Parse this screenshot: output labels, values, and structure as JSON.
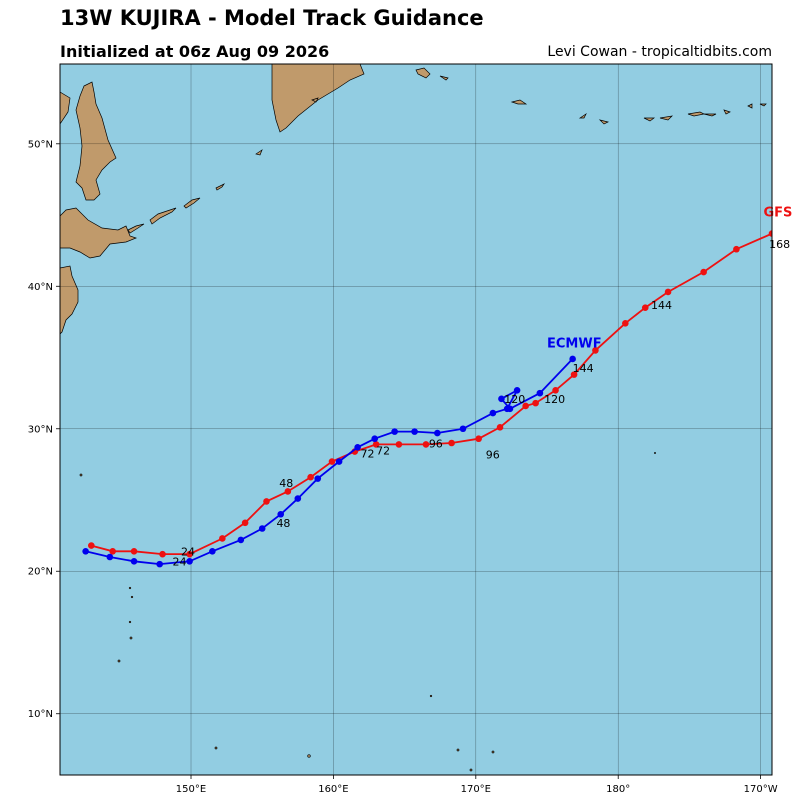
{
  "header": {
    "title": "13W KUJIRA - Model Track Guidance",
    "subtitle": "Initialized at 06z Aug 09 2026",
    "credit": "Levi Cowan - tropicaltidbits.com"
  },
  "axes": {
    "lat_ticks": [
      {
        "value": 10,
        "label": "10°N"
      },
      {
        "value": 20,
        "label": "20°N"
      },
      {
        "value": 30,
        "label": "30°N"
      },
      {
        "value": 40,
        "label": "40°N"
      },
      {
        "value": 50,
        "label": "50°N"
      }
    ],
    "lon_ticks": [
      {
        "value": 150,
        "label": "150°E"
      },
      {
        "value": 160,
        "label": "160°E"
      },
      {
        "value": 170,
        "label": "170°E"
      },
      {
        "value": 180,
        "label": "180°"
      },
      {
        "value": 190,
        "label": "170°W"
      }
    ],
    "lon_range": [
      140.8,
      190.8
    ],
    "lat_range": [
      5.7,
      55.6
    ],
    "grid": true
  },
  "colors": {
    "ocean": "#92cde2",
    "land": "#c09a6b",
    "gfs": "#ee1111",
    "ecmwf": "#0000ee"
  },
  "chart_data": {
    "type": "map-track",
    "series": [
      {
        "name": "GFS",
        "color": "#ee1111",
        "points": [
          [
            143.0,
            21.8
          ],
          [
            144.5,
            21.4
          ],
          [
            146.0,
            21.4
          ],
          [
            148.0,
            21.2
          ],
          [
            149.9,
            21.2
          ],
          [
            152.2,
            22.3
          ],
          [
            153.8,
            23.4
          ],
          [
            155.3,
            24.9
          ],
          [
            156.8,
            25.6
          ],
          [
            158.4,
            26.6
          ],
          [
            159.9,
            27.7
          ],
          [
            161.5,
            28.4
          ],
          [
            163.0,
            28.9
          ],
          [
            164.6,
            28.9
          ],
          [
            166.5,
            28.9
          ],
          [
            168.3,
            29.0
          ],
          [
            170.2,
            29.3
          ],
          [
            171.7,
            30.1
          ],
          [
            173.5,
            31.6
          ],
          [
            174.2,
            31.8
          ],
          [
            175.6,
            32.7
          ],
          [
            176.9,
            33.8
          ],
          [
            178.4,
            35.5
          ],
          [
            180.5,
            37.4
          ],
          [
            181.9,
            38.5
          ],
          [
            183.5,
            39.6
          ],
          [
            186.0,
            41.0
          ],
          [
            188.3,
            42.6
          ],
          [
            190.8,
            43.7
          ]
        ],
        "hour_labels": [
          {
            "text": "24",
            "lon": 148.7,
            "lat": 20.4
          },
          {
            "text": "48",
            "lon": 156.2,
            "lat": 25.9
          },
          {
            "text": "72",
            "lon": 161.9,
            "lat": 28.0
          },
          {
            "text": "96",
            "lon": 166.7,
            "lat": 28.7
          },
          {
            "text": "120",
            "lon": 174.8,
            "lat": 31.8
          },
          {
            "text": "144",
            "lon": 182.3,
            "lat": 38.4
          },
          {
            "text": "168",
            "lon": 190.6,
            "lat": 42.7
          }
        ]
      },
      {
        "name": "ECMWF",
        "color": "#0000ee",
        "points": [
          [
            142.6,
            21.4
          ],
          [
            144.3,
            21.0
          ],
          [
            146.0,
            20.7
          ],
          [
            147.8,
            20.5
          ],
          [
            149.9,
            20.7
          ],
          [
            151.5,
            21.4
          ],
          [
            153.5,
            22.2
          ],
          [
            155.0,
            23.0
          ],
          [
            156.3,
            24.0
          ],
          [
            157.5,
            25.1
          ],
          [
            158.9,
            26.5
          ],
          [
            160.4,
            27.7
          ],
          [
            161.7,
            28.7
          ],
          [
            162.9,
            29.3
          ],
          [
            164.3,
            29.8
          ],
          [
            165.7,
            29.8
          ],
          [
            167.3,
            29.7
          ],
          [
            169.1,
            30.0
          ],
          [
            171.2,
            31.1
          ],
          [
            172.2,
            31.4
          ],
          [
            172.9,
            32.7
          ],
          [
            171.8,
            32.1
          ],
          [
            172.4,
            31.4
          ],
          [
            174.5,
            32.5
          ],
          [
            176.8,
            34.9
          ]
        ],
        "hour_labels": [
          {
            "text": "24",
            "lon": 149.3,
            "lat": 21.1
          },
          {
            "text": "48",
            "lon": 156.0,
            "lat": 23.1
          },
          {
            "text": "72",
            "lon": 163.0,
            "lat": 28.2
          },
          {
            "text": "96",
            "lon": 170.7,
            "lat": 27.9
          },
          {
            "text": "120",
            "lon": 172.0,
            "lat": 31.8
          },
          {
            "text": "144",
            "lon": 176.8,
            "lat": 34.0
          }
        ]
      }
    ],
    "model_labels": [
      {
        "text": "GFS",
        "lon": 190.2,
        "lat": 44.9,
        "color": "#ee1111"
      },
      {
        "text": "ECMWF",
        "lon": 175.0,
        "lat": 35.7,
        "color": "#0000ee"
      }
    ]
  }
}
